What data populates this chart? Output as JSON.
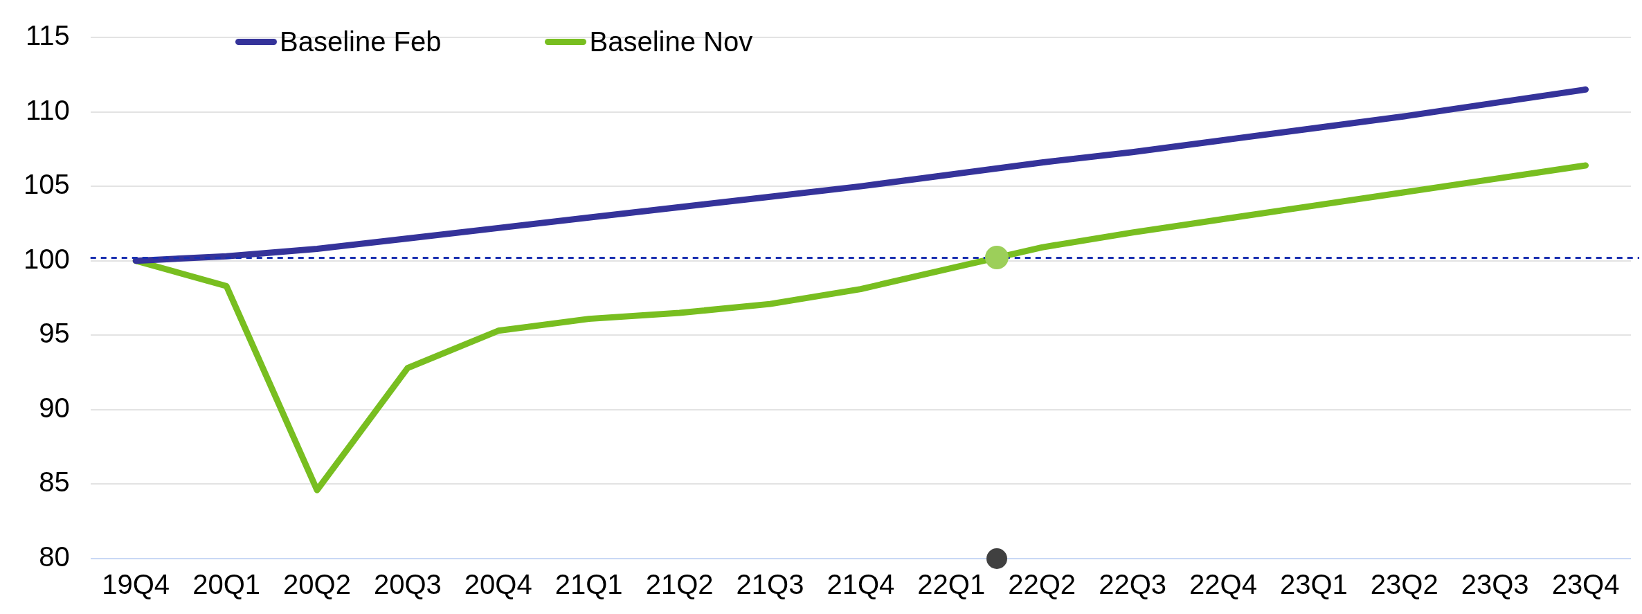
{
  "chart_data": {
    "type": "line",
    "categories": [
      "19Q4",
      "20Q1",
      "20Q2",
      "20Q3",
      "20Q4",
      "21Q1",
      "21Q2",
      "21Q3",
      "21Q4",
      "22Q1",
      "22Q2",
      "22Q3",
      "22Q4",
      "23Q1",
      "23Q2",
      "23Q3",
      "23Q4"
    ],
    "ylim": [
      80,
      115
    ],
    "yticks": [
      80,
      85,
      90,
      95,
      100,
      105,
      110,
      115
    ],
    "series": [
      {
        "name": "Baseline Feb",
        "color": "#35339a",
        "values": [
          100,
          100.3,
          100.8,
          101.5,
          102.2,
          102.9,
          103.6,
          104.3,
          105.0,
          105.8,
          106.6,
          107.3,
          108.1,
          108.9,
          109.7,
          110.6,
          111.5
        ]
      },
      {
        "name": "Baseline Nov",
        "color": "#78be20",
        "values": [
          100,
          98.3,
          84.6,
          92.8,
          95.3,
          96.1,
          96.5,
          97.1,
          98.1,
          99.5,
          100.9,
          101.9,
          102.8,
          103.7,
          104.6,
          105.5,
          106.4
        ]
      }
    ],
    "ref_lines": [
      {
        "axis": "y",
        "value": 100.2,
        "color": "#1a2fb0",
        "line_style": "dashed"
      }
    ],
    "grid": "y",
    "legend": "top left",
    "marker": "none",
    "line_style": "solid"
  }
}
